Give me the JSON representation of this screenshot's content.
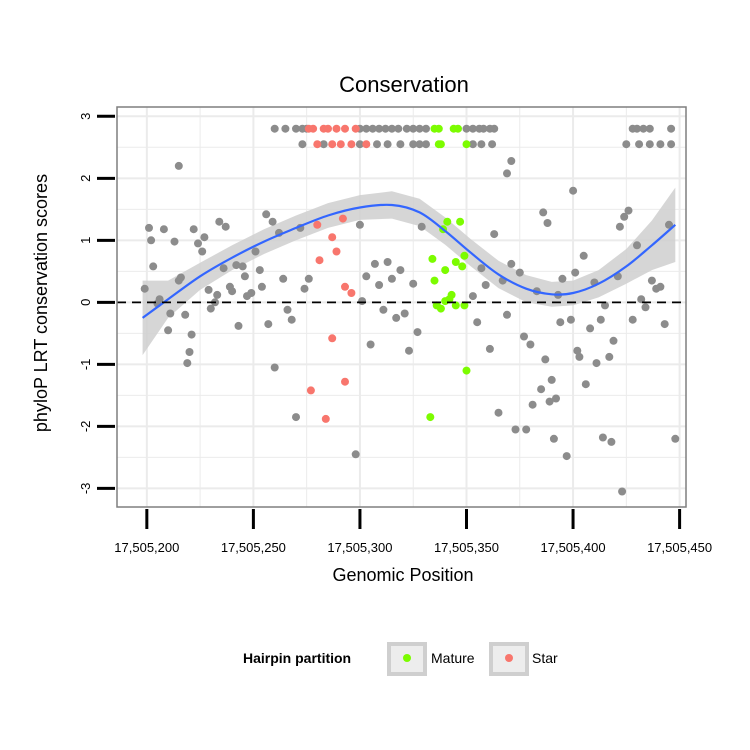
{
  "chart_data": {
    "type": "scatter",
    "title": "Conservation",
    "xlabel": "Genomic Position",
    "ylabel": "phyloP LRT conservation scores",
    "xlim": [
      17505186,
      17505453
    ],
    "ylim": [
      -3.3,
      3.15
    ],
    "x_ticks": [
      17505200,
      17505250,
      17505300,
      17505350,
      17505400,
      17505450
    ],
    "x_tick_labels": [
      "17,505,200",
      "17,505,250",
      "17,505,300",
      "17,505,350",
      "17,505,400",
      "17,505,450"
    ],
    "y_ticks": [
      3,
      2,
      1,
      0,
      -1,
      -2,
      -3
    ],
    "y_tick_labels": [
      "3",
      "2",
      "1",
      "0",
      "-1",
      "-2",
      "-3"
    ],
    "grid": true,
    "reference_line": {
      "y": 0,
      "style": "dashed"
    },
    "colors": {
      "other": "#8c8c8c",
      "Mature": "#7cfc00",
      "Star": "#f8766d",
      "smooth_line": "#3366ff",
      "ribbon": "#cfcfcf",
      "grid": "#ebebeb",
      "panel_border": "#7f7f7f"
    },
    "legend": {
      "title": "Hairpin partition",
      "position": "bottom",
      "entries": [
        "Mature",
        "Star"
      ]
    },
    "smooth": [
      {
        "x": 17505198,
        "y": -0.25,
        "se": 0.6
      },
      {
        "x": 17505210,
        "y": 0.05,
        "se": 0.3
      },
      {
        "x": 17505225,
        "y": 0.42,
        "se": 0.22
      },
      {
        "x": 17505240,
        "y": 0.72,
        "se": 0.2
      },
      {
        "x": 17505255,
        "y": 0.98,
        "se": 0.2
      },
      {
        "x": 17505270,
        "y": 1.2,
        "se": 0.2
      },
      {
        "x": 17505285,
        "y": 1.4,
        "se": 0.2
      },
      {
        "x": 17505300,
        "y": 1.53,
        "se": 0.2
      },
      {
        "x": 17505315,
        "y": 1.57,
        "se": 0.22
      },
      {
        "x": 17505328,
        "y": 1.45,
        "se": 0.22
      },
      {
        "x": 17505340,
        "y": 1.15,
        "se": 0.22
      },
      {
        "x": 17505352,
        "y": 0.8,
        "se": 0.22
      },
      {
        "x": 17505365,
        "y": 0.45,
        "se": 0.22
      },
      {
        "x": 17505378,
        "y": 0.22,
        "se": 0.22
      },
      {
        "x": 17505390,
        "y": 0.13,
        "se": 0.2
      },
      {
        "x": 17505400,
        "y": 0.15,
        "se": 0.2
      },
      {
        "x": 17505412,
        "y": 0.3,
        "se": 0.22
      },
      {
        "x": 17505425,
        "y": 0.58,
        "se": 0.28
      },
      {
        "x": 17505437,
        "y": 0.92,
        "se": 0.4
      },
      {
        "x": 17505448,
        "y": 1.25,
        "se": 0.6
      }
    ],
    "series": [
      {
        "name": "Mature",
        "points": [
          [
            17505335,
            2.8
          ],
          [
            17505337,
            2.8
          ],
          [
            17505344,
            2.8
          ],
          [
            17505346,
            2.8
          ],
          [
            17505337,
            2.55
          ],
          [
            17505338,
            2.55
          ],
          [
            17505350,
            2.55
          ],
          [
            17505341,
            1.3
          ],
          [
            17505347,
            1.3
          ],
          [
            17505339,
            1.18
          ],
          [
            17505334,
            0.7
          ],
          [
            17505345,
            0.65
          ],
          [
            17505340,
            0.52
          ],
          [
            17505335,
            0.35
          ],
          [
            17505349,
            0.75
          ],
          [
            17505348,
            0.58
          ],
          [
            17505343,
            0.12
          ],
          [
            17505340,
            0.02
          ],
          [
            17505336,
            -0.05
          ],
          [
            17505338,
            -0.1
          ],
          [
            17505345,
            -0.05
          ],
          [
            17505349,
            -0.05
          ],
          [
            17505342,
            0.05
          ],
          [
            17505333,
            -1.85
          ],
          [
            17505350,
            -1.1
          ]
        ]
      },
      {
        "name": "Star",
        "points": [
          [
            17505276,
            2.8
          ],
          [
            17505278,
            2.8
          ],
          [
            17505283,
            2.8
          ],
          [
            17505285,
            2.8
          ],
          [
            17505289,
            2.8
          ],
          [
            17505293,
            2.8
          ],
          [
            17505298,
            2.8
          ],
          [
            17505280,
            2.55
          ],
          [
            17505287,
            2.55
          ],
          [
            17505291,
            2.55
          ],
          [
            17505296,
            2.55
          ],
          [
            17505303,
            2.55
          ],
          [
            17505292,
            1.35
          ],
          [
            17505280,
            1.25
          ],
          [
            17505287,
            1.05
          ],
          [
            17505289,
            0.82
          ],
          [
            17505281,
            0.68
          ],
          [
            17505293,
            0.25
          ],
          [
            17505296,
            0.15
          ],
          [
            17505287,
            -0.58
          ],
          [
            17505277,
            -1.42
          ],
          [
            17505293,
            -1.28
          ],
          [
            17505284,
            -1.88
          ]
        ]
      },
      {
        "name": "",
        "points": [
          [
            17505260,
            2.8
          ],
          [
            17505265,
            2.8
          ],
          [
            17505270,
            2.8
          ],
          [
            17505273,
            2.8
          ],
          [
            17505275,
            2.8
          ],
          [
            17505300,
            2.8
          ],
          [
            17505303,
            2.8
          ],
          [
            17505306,
            2.8
          ],
          [
            17505309,
            2.8
          ],
          [
            17505312,
            2.8
          ],
          [
            17505315,
            2.8
          ],
          [
            17505318,
            2.8
          ],
          [
            17505322,
            2.8
          ],
          [
            17505325,
            2.8
          ],
          [
            17505328,
            2.8
          ],
          [
            17505331,
            2.8
          ],
          [
            17505350,
            2.8
          ],
          [
            17505353,
            2.8
          ],
          [
            17505356,
            2.8
          ],
          [
            17505358,
            2.8
          ],
          [
            17505361,
            2.8
          ],
          [
            17505363,
            2.8
          ],
          [
            17505428,
            2.8
          ],
          [
            17505430,
            2.8
          ],
          [
            17505433,
            2.8
          ],
          [
            17505436,
            2.8
          ],
          [
            17505446,
            2.8
          ],
          [
            17505273,
            2.55
          ],
          [
            17505283,
            2.55
          ],
          [
            17505300,
            2.55
          ],
          [
            17505308,
            2.55
          ],
          [
            17505313,
            2.55
          ],
          [
            17505319,
            2.55
          ],
          [
            17505325,
            2.55
          ],
          [
            17505328,
            2.55
          ],
          [
            17505331,
            2.55
          ],
          [
            17505353,
            2.55
          ],
          [
            17505357,
            2.55
          ],
          [
            17505362,
            2.55
          ],
          [
            17505425,
            2.55
          ],
          [
            17505431,
            2.55
          ],
          [
            17505436,
            2.55
          ],
          [
            17505441,
            2.55
          ],
          [
            17505446,
            2.55
          ],
          [
            17505371,
            2.28
          ],
          [
            17505369,
            2.08
          ],
          [
            17505215,
            2.2
          ],
          [
            17505400,
            1.8
          ],
          [
            17505199,
            0.22
          ],
          [
            17505201,
            1.2
          ],
          [
            17505202,
            1.0
          ],
          [
            17505203,
            0.58
          ],
          [
            17505205,
            -0.02
          ],
          [
            17505206,
            0.05
          ],
          [
            17505208,
            1.18
          ],
          [
            17505210,
            -0.45
          ],
          [
            17505211,
            -0.18
          ],
          [
            17505213,
            0.98
          ],
          [
            17505215,
            0.35
          ],
          [
            17505216,
            0.4
          ],
          [
            17505218,
            -0.2
          ],
          [
            17505219,
            -0.98
          ],
          [
            17505220,
            -0.8
          ],
          [
            17505221,
            -0.52
          ],
          [
            17505222,
            1.18
          ],
          [
            17505224,
            0.95
          ],
          [
            17505226,
            0.82
          ],
          [
            17505227,
            1.05
          ],
          [
            17505229,
            0.2
          ],
          [
            17505230,
            -0.1
          ],
          [
            17505232,
            0.0
          ],
          [
            17505233,
            0.12
          ],
          [
            17505234,
            1.3
          ],
          [
            17505236,
            0.55
          ],
          [
            17505237,
            1.22
          ],
          [
            17505239,
            0.25
          ],
          [
            17505240,
            0.18
          ],
          [
            17505242,
            0.6
          ],
          [
            17505243,
            -0.38
          ],
          [
            17505245,
            0.58
          ],
          [
            17505246,
            0.42
          ],
          [
            17505247,
            0.1
          ],
          [
            17505249,
            0.15
          ],
          [
            17505251,
            0.82
          ],
          [
            17505253,
            0.52
          ],
          [
            17505254,
            0.25
          ],
          [
            17505256,
            1.42
          ],
          [
            17505257,
            -0.35
          ],
          [
            17505259,
            1.3
          ],
          [
            17505260,
            -1.05
          ],
          [
            17505262,
            1.12
          ],
          [
            17505264,
            0.38
          ],
          [
            17505266,
            -0.12
          ],
          [
            17505268,
            -0.28
          ],
          [
            17505270,
            -1.85
          ],
          [
            17505272,
            1.2
          ],
          [
            17505274,
            0.22
          ],
          [
            17505276,
            0.38
          ],
          [
            17505298,
            -2.45
          ],
          [
            17505300,
            1.25
          ],
          [
            17505301,
            0.02
          ],
          [
            17505303,
            0.42
          ],
          [
            17505305,
            -0.68
          ],
          [
            17505307,
            0.62
          ],
          [
            17505309,
            0.28
          ],
          [
            17505311,
            -0.12
          ],
          [
            17505313,
            0.65
          ],
          [
            17505315,
            0.38
          ],
          [
            17505317,
            -0.25
          ],
          [
            17505319,
            0.52
          ],
          [
            17505321,
            -0.18
          ],
          [
            17505323,
            -0.78
          ],
          [
            17505325,
            0.3
          ],
          [
            17505327,
            -0.48
          ],
          [
            17505329,
            1.22
          ],
          [
            17505353,
            0.1
          ],
          [
            17505355,
            -0.32
          ],
          [
            17505357,
            0.55
          ],
          [
            17505359,
            0.28
          ],
          [
            17505361,
            -0.75
          ],
          [
            17505363,
            1.1
          ],
          [
            17505365,
            -1.78
          ],
          [
            17505367,
            0.35
          ],
          [
            17505369,
            -0.2
          ],
          [
            17505371,
            0.62
          ],
          [
            17505373,
            -2.05
          ],
          [
            17505375,
            0.48
          ],
          [
            17505377,
            -0.55
          ],
          [
            17505378,
            -2.05
          ],
          [
            17505380,
            -0.68
          ],
          [
            17505381,
            -1.65
          ],
          [
            17505383,
            0.18
          ],
          [
            17505385,
            -1.4
          ],
          [
            17505386,
            1.45
          ],
          [
            17505387,
            -0.92
          ],
          [
            17505388,
            1.28
          ],
          [
            17505389,
            -1.6
          ],
          [
            17505390,
            -1.25
          ],
          [
            17505391,
            -2.2
          ],
          [
            17505392,
            -1.55
          ],
          [
            17505393,
            0.12
          ],
          [
            17505394,
            -0.32
          ],
          [
            17505395,
            0.38
          ],
          [
            17505397,
            -2.48
          ],
          [
            17505399,
            -0.28
          ],
          [
            17505401,
            0.48
          ],
          [
            17505402,
            -0.78
          ],
          [
            17505403,
            -0.88
          ],
          [
            17505405,
            0.75
          ],
          [
            17505406,
            -1.32
          ],
          [
            17505408,
            -0.42
          ],
          [
            17505410,
            0.32
          ],
          [
            17505411,
            -0.98
          ],
          [
            17505413,
            -0.28
          ],
          [
            17505414,
            -2.18
          ],
          [
            17505415,
            -0.05
          ],
          [
            17505417,
            -0.88
          ],
          [
            17505418,
            -2.25
          ],
          [
            17505419,
            -0.62
          ],
          [
            17505421,
            0.42
          ],
          [
            17505422,
            1.22
          ],
          [
            17505423,
            -3.05
          ],
          [
            17505424,
            1.38
          ],
          [
            17505426,
            1.48
          ],
          [
            17505428,
            -0.28
          ],
          [
            17505430,
            0.92
          ],
          [
            17505432,
            0.05
          ],
          [
            17505434,
            -0.08
          ],
          [
            17505437,
            0.35
          ],
          [
            17505439,
            0.22
          ],
          [
            17505441,
            0.25
          ],
          [
            17505443,
            -0.35
          ],
          [
            17505445,
            1.25
          ],
          [
            17505448,
            -2.2
          ]
        ]
      }
    ]
  }
}
